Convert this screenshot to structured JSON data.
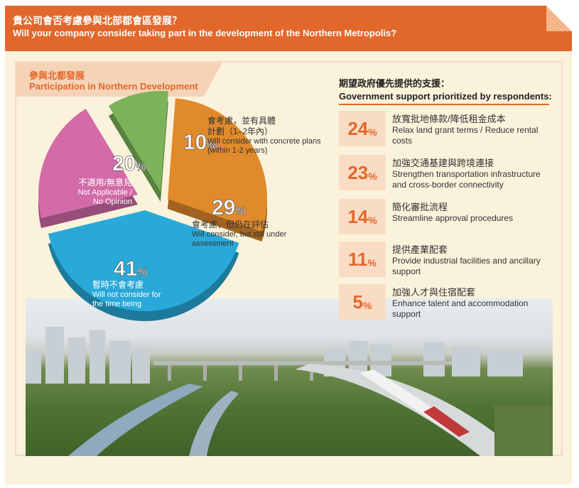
{
  "header": {
    "title_zh": "貴公司會否考慮參與北部都會區發展？",
    "title_en": "Will your company consider taking part in the development of the Northern Metropolis?"
  },
  "section_tab": {
    "title_zh": "參與北都發展",
    "title_en": "Participation in Northern Development"
  },
  "chart_data": {
    "type": "pie",
    "title": "參與北都發展 Participation in Northern Development",
    "slices": [
      {
        "value": 10,
        "pct_label": "10",
        "unit": "%",
        "label_zh": "會考慮，並有具體計劃（1–2年內）",
        "label_zh_1": "會考慮，並有具體",
        "label_zh_2": "計劃（1–2年內）",
        "label_en_1": "Will consider with concrete plans",
        "label_en_2": "(within 1-2 years)",
        "color": "#7cb35a"
      },
      {
        "value": 29,
        "pct_label": "29",
        "unit": "%",
        "label_zh": "會考慮，但仍在評估",
        "label_en_1": "Will consider, but still under",
        "label_en_2": "assessment",
        "color": "#e08a2b"
      },
      {
        "value": 41,
        "pct_label": "41",
        "unit": "%",
        "label_zh": "暫時不會考慮",
        "label_en_1": "Will not consider for",
        "label_en_2": "the time being",
        "color": "#29a9d9"
      },
      {
        "value": 20,
        "pct_label": "20",
        "unit": "%",
        "label_zh": "不適用/無意見",
        "label_en_1": "Not Applicable /",
        "label_en_2": "No Opinion",
        "color": "#d26ba8"
      }
    ]
  },
  "support": {
    "title_zh": "期望政府優先提供的支援：",
    "title_en": "Government support prioritized by respondents:",
    "unit": "%",
    "items": [
      {
        "value": "24",
        "label_zh": "放寬批地條款/降低租金成本",
        "label_en": "Relax land grant terms / Reduce rental costs"
      },
      {
        "value": "23",
        "label_zh": "加強交通基建與跨境連接",
        "label_en": "Strengthen transportation infrastructure and cross-border connectivity"
      },
      {
        "value": "14",
        "label_zh": "簡化審批流程",
        "label_en": "Streamline approval procedures"
      },
      {
        "value": "11",
        "label_zh": "提供產業配套",
        "label_en": "Provide industrial facilities and ancillary support"
      },
      {
        "value": "5",
        "label_zh": "加強人才與住宿配套",
        "label_en": "Enhance talent and accommodation support"
      }
    ]
  },
  "colors": {
    "accent": "#e2672a",
    "panel_bg": "#fbf2db",
    "box_bg": "#f8dcc3"
  }
}
